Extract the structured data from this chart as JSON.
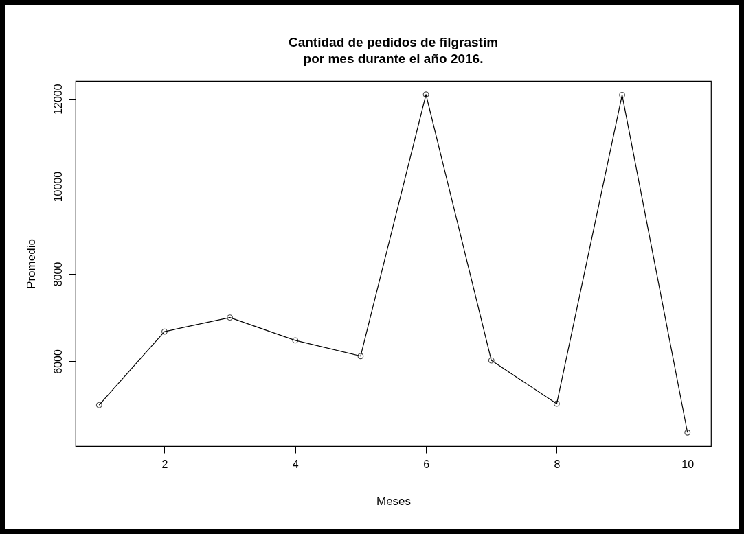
{
  "chart_data": {
    "type": "line",
    "title": "Cantidad de pedidos de filgrastim\n por mes durante el año 2016.",
    "xlabel": "Meses",
    "ylabel": "Promedio",
    "x": [
      1,
      2,
      3,
      4,
      5,
      6,
      7,
      8,
      9,
      10
    ],
    "series": [
      {
        "color": "#000000",
        "values": [
          5000,
          6680,
          7000,
          6480,
          6120,
          12100,
          6020,
          5030,
          12090,
          4370
        ]
      }
    ],
    "xlim": [
      0.64,
      10.36
    ],
    "xticks": [
      2,
      4,
      6,
      8,
      10
    ],
    "ylim": [
      4060,
      12410
    ],
    "yticks": [
      6000,
      8000,
      10000,
      12000
    ],
    "grid": false,
    "legend": false,
    "marker": "circle",
    "line_style": "solid"
  }
}
